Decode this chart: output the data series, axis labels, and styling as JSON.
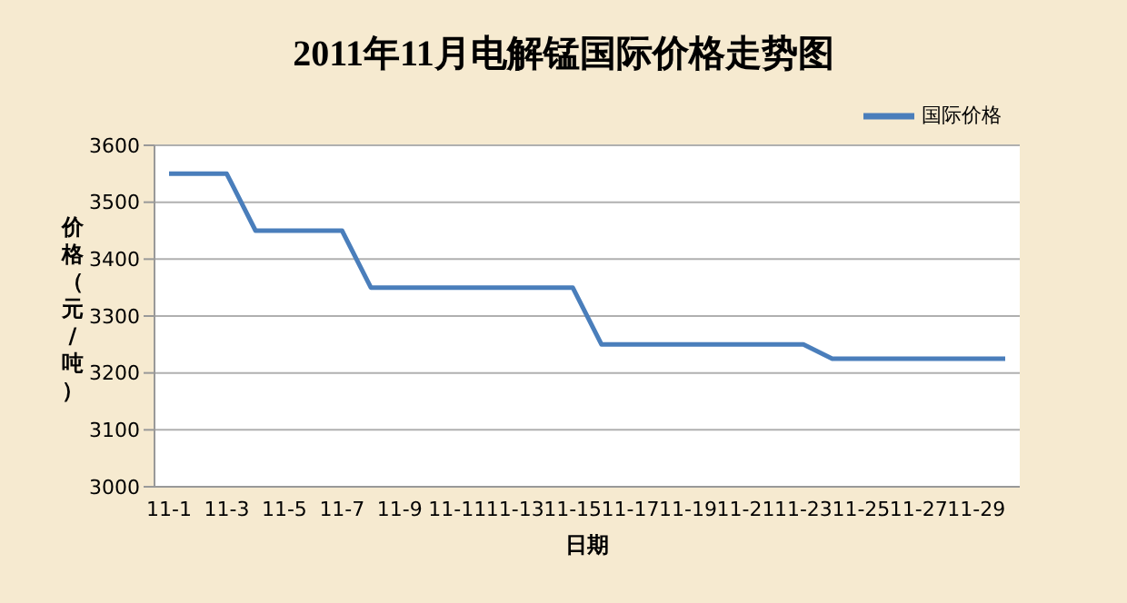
{
  "chart_data": {
    "type": "line",
    "title": "2011年11月电解锰国际价格走势图",
    "xlabel": "日期",
    "ylabel": "价格（元/吨）",
    "categories": [
      "11-1",
      null,
      "11-3",
      null,
      "11-5",
      null,
      "11-7",
      null,
      "11-9",
      null,
      "11-11",
      null,
      "11-13",
      null,
      "11-15",
      null,
      "11-17",
      null,
      "11-19",
      null,
      "11-21",
      null,
      "11-23",
      null,
      "11-25",
      null,
      "11-27",
      null,
      "11-29",
      null
    ],
    "series": [
      {
        "name": "国际价格",
        "color": "#4a7ebb",
        "values": [
          3550,
          3550,
          3550,
          3450,
          3450,
          3450,
          3450,
          3350,
          3350,
          3350,
          3350,
          3350,
          3350,
          3350,
          3350,
          3250,
          3250,
          3250,
          3250,
          3250,
          3250,
          3250,
          3250,
          3225,
          3225,
          3225,
          3225,
          3225,
          3225,
          3225
        ]
      }
    ],
    "ylim": [
      3000,
      3600
    ],
    "yticks": [
      3000,
      3100,
      3200,
      3300,
      3400,
      3500,
      3600
    ],
    "grid": "y",
    "legend": "top right",
    "marker": "none",
    "line_style": "solid"
  }
}
